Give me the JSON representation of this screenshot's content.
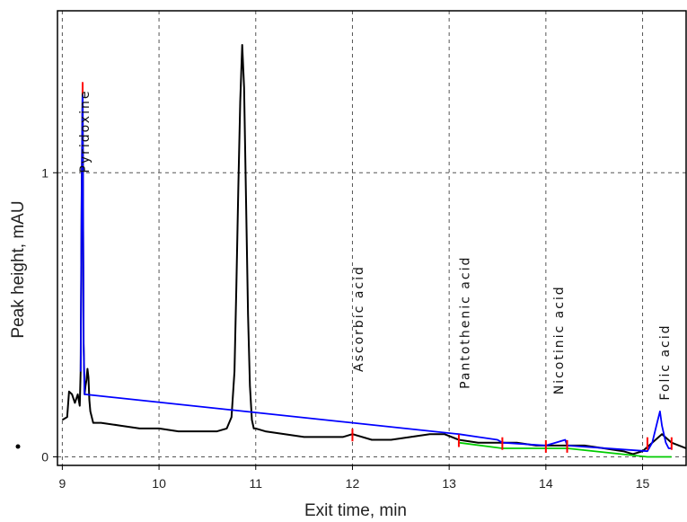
{
  "chart_data": {
    "type": "line",
    "title": "",
    "xlabel": "Exit time, min",
    "ylabel": "Peak height, mAU",
    "xlim": [
      8.95,
      15.45
    ],
    "ylim": [
      -0.03,
      1.57
    ],
    "grid": true,
    "x_ticks": [
      "9",
      "10",
      "11",
      "12",
      "13",
      "14",
      "15"
    ],
    "y_ticks": [
      "0",
      "1"
    ],
    "series": [
      {
        "color": "#000000",
        "x": [
          9.0,
          9.05,
          9.07,
          9.1,
          9.13,
          9.16,
          9.18,
          9.19,
          9.2,
          9.21,
          9.22,
          9.23,
          9.24,
          9.25,
          9.26,
          9.27,
          9.28,
          9.29,
          9.32,
          9.4,
          9.6,
          9.8,
          10.0,
          10.2,
          10.4,
          10.6,
          10.7,
          10.75,
          10.78,
          10.8,
          10.82,
          10.84,
          10.86,
          10.88,
          10.9,
          10.92,
          10.94,
          10.96,
          10.98,
          11.0,
          11.1,
          11.3,
          11.5,
          11.7,
          11.9,
          12.0,
          12.2,
          12.4,
          12.6,
          12.8,
          12.95,
          13.1,
          13.3,
          13.5,
          13.7,
          13.9,
          14.0,
          14.2,
          14.4,
          14.6,
          14.8,
          14.9,
          15.0,
          15.1,
          15.2,
          15.3,
          15.45
        ],
        "y": [
          0.13,
          0.14,
          0.23,
          0.22,
          0.19,
          0.22,
          0.18,
          0.3,
          0.9,
          1.3,
          0.4,
          0.22,
          0.25,
          0.27,
          0.31,
          0.28,
          0.2,
          0.16,
          0.12,
          0.12,
          0.11,
          0.1,
          0.1,
          0.09,
          0.09,
          0.09,
          0.1,
          0.14,
          0.3,
          0.6,
          0.95,
          1.25,
          1.45,
          1.3,
          0.9,
          0.5,
          0.25,
          0.13,
          0.1,
          0.1,
          0.09,
          0.08,
          0.07,
          0.07,
          0.07,
          0.08,
          0.06,
          0.06,
          0.07,
          0.08,
          0.08,
          0.06,
          0.05,
          0.05,
          0.05,
          0.04,
          0.04,
          0.04,
          0.04,
          0.03,
          0.02,
          0.01,
          0.02,
          0.05,
          0.08,
          0.05,
          0.03
        ]
      },
      {
        "color": "#0000ff",
        "x": [
          9.19,
          9.2,
          9.21,
          9.22,
          9.23,
          13.1,
          13.3,
          13.5,
          13.55,
          14.0,
          14.1,
          14.2,
          14.22,
          15.05,
          15.1,
          15.15,
          15.18,
          15.2,
          15.24,
          15.27,
          15.3
        ],
        "y": [
          0.3,
          0.9,
          1.3,
          0.4,
          0.22,
          0.08,
          0.07,
          0.06,
          0.05,
          0.04,
          0.05,
          0.06,
          0.04,
          0.02,
          0.05,
          0.12,
          0.16,
          0.11,
          0.05,
          0.03,
          0.03
        ]
      },
      {
        "color": "#00cc00",
        "x": [
          13.1,
          13.55,
          14.0,
          14.22,
          15.05,
          15.3
        ],
        "y": [
          0.05,
          0.03,
          0.03,
          0.03,
          0.0,
          0.0
        ]
      }
    ],
    "annotations": [
      {
        "text": "Pyridoxine",
        "x": 9.22
      },
      {
        "text": "Ascorbic acid",
        "x": 12.05
      },
      {
        "text": "Pantothenic acid",
        "x": 13.15
      },
      {
        "text": "Nicotinic acid",
        "x": 14.12
      },
      {
        "text": "Folic acid",
        "x": 15.22
      }
    ],
    "markers": [
      9.21,
      12.0,
      13.1,
      13.55,
      14.0,
      14.22,
      15.05,
      15.3
    ]
  }
}
